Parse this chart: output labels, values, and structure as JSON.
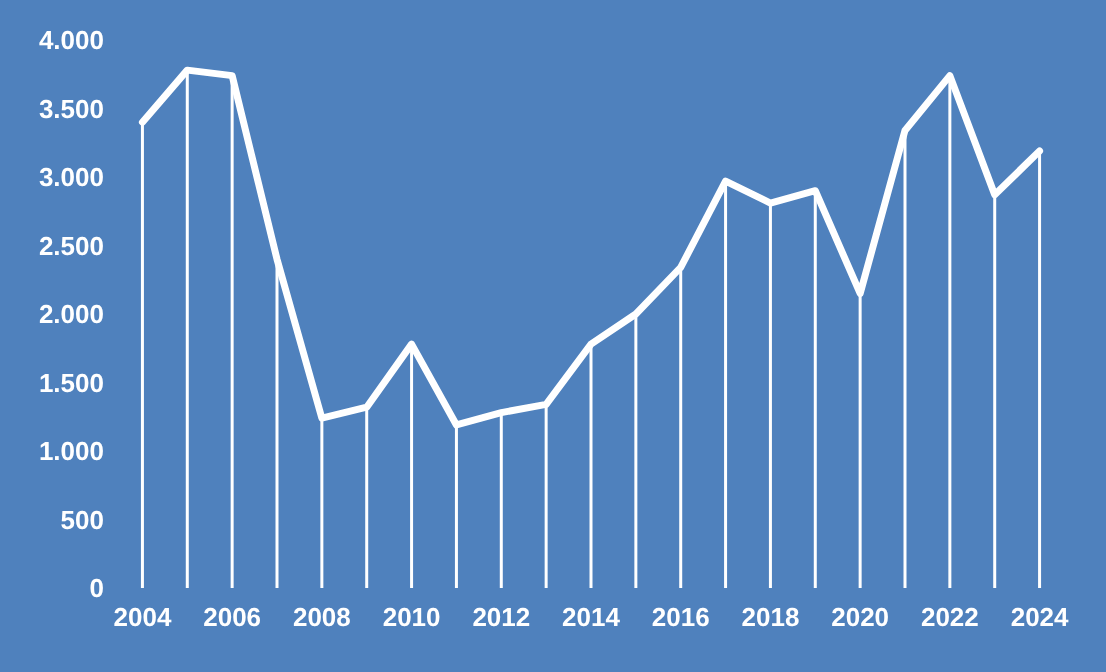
{
  "chart_data": {
    "type": "line",
    "categories": [
      "2004",
      null,
      "2006",
      null,
      "2008",
      null,
      "2010",
      null,
      "2012",
      null,
      "2014",
      null,
      "2016",
      null,
      "2018",
      null,
      "2020",
      null,
      "2022",
      null,
      "2024"
    ],
    "series": [
      {
        "color": "#ffffff",
        "values": [
          3400,
          3780,
          3740,
          2400,
          1240,
          1320,
          1780,
          1190,
          1280,
          1340,
          1780,
          2000,
          2340,
          2970,
          2810,
          2900,
          2150,
          3340,
          3740,
          2870,
          3190
        ]
      },
      {
        "type": "bar",
        "color": "#ffffff",
        "values": [
          3400,
          3780,
          3740,
          2400,
          1240,
          1320,
          1780,
          1190,
          1280,
          1340,
          1780,
          2000,
          2340,
          2970,
          2810,
          2900,
          2150,
          3340,
          3740,
          2870,
          3190
        ]
      }
    ],
    "ylim": [
      0,
      4000
    ],
    "yticks": [
      0,
      500,
      {
        "value": 1000,
        "label": "1.000"
      },
      {
        "value": 1500,
        "label": "1.500"
      },
      {
        "value": 2000,
        "label": "2.000"
      },
      {
        "value": 2500,
        "label": "2.500"
      },
      {
        "value": 3000,
        "label": "3.000"
      },
      {
        "value": 3500,
        "label": "3.500"
      },
      {
        "value": 4000,
        "label": "4.000"
      }
    ],
    "grid": false,
    "line_style": "solid"
  }
}
